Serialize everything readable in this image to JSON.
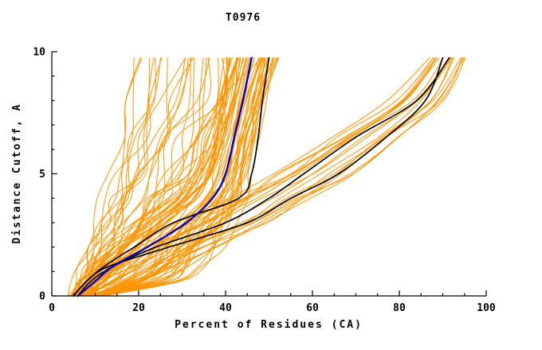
{
  "page": {
    "background": "#ffffff"
  },
  "chart_data": {
    "type": "line",
    "title": "T0976",
    "xlabel": "Percent of Residues (CA)",
    "ylabel": "Distance Cutoff, A",
    "xlim": [
      0,
      100
    ],
    "ylim": [
      0,
      10
    ],
    "x_ticks": [
      0,
      20,
      40,
      60,
      80,
      100
    ],
    "y_ticks": [
      0,
      5,
      10
    ],
    "x_minor_step": 5,
    "y_minor_step": 1,
    "grid": false,
    "legend": "none",
    "axis_color": "#000000",
    "colors": {
      "ensemble": "#ff9400",
      "highlight": "#0000cc",
      "reference": "#000000"
    },
    "y_levels": [
      0,
      0.6,
      1.2,
      2,
      3,
      4,
      5,
      6.5,
      8,
      9.75
    ],
    "series": [
      {
        "name": "model-blue",
        "color": "#0000cc",
        "width": 2.4,
        "x_at_levels": [
          6,
          10,
          14,
          22,
          31,
          37,
          40,
          42,
          44,
          46
        ]
      },
      {
        "name": "model-black-1",
        "color": "#000000",
        "width": 1.7,
        "x_at_levels": [
          5,
          8,
          12,
          19,
          28,
          43,
          46,
          47.5,
          48.5,
          50
        ]
      },
      {
        "name": "model-black-2",
        "color": "#000000",
        "width": 1.7,
        "x_at_levels": [
          6,
          9,
          14,
          24,
          40,
          50,
          58,
          70,
          84,
          91.5
        ]
      },
      {
        "name": "model-black-3",
        "color": "#000000",
        "width": 1.7,
        "x_at_levels": [
          5,
          8,
          13,
          27,
          45,
          55,
          66,
          77,
          86,
          90
        ]
      }
    ],
    "ensemble": {
      "name": "server-models",
      "color": "#ff9400",
      "width": 1,
      "seed": 42,
      "families": [
        {
          "name": "main-bundle",
          "count": 48,
          "jitter": 0.1,
          "min": [
            4,
            6,
            8,
            13,
            20,
            28,
            33,
            36,
            38,
            40
          ],
          "max": [
            12,
            28,
            34,
            38,
            41,
            44,
            45.5,
            47,
            49,
            52
          ]
        },
        {
          "name": "left-fan",
          "count": 26,
          "jitter": 0.18,
          "min": [
            4,
            5,
            6,
            8,
            10,
            12,
            14,
            15,
            16,
            18
          ],
          "max": [
            9,
            12,
            15,
            20,
            25,
            29,
            33,
            37,
            41,
            45
          ]
        },
        {
          "name": "right-group",
          "count": 18,
          "jitter": 0.1,
          "min": [
            5,
            8,
            12,
            18,
            28,
            40,
            50,
            64,
            78,
            86
          ],
          "max": [
            12,
            20,
            28,
            38,
            50,
            60,
            70,
            80,
            90,
            96
          ]
        }
      ]
    }
  }
}
